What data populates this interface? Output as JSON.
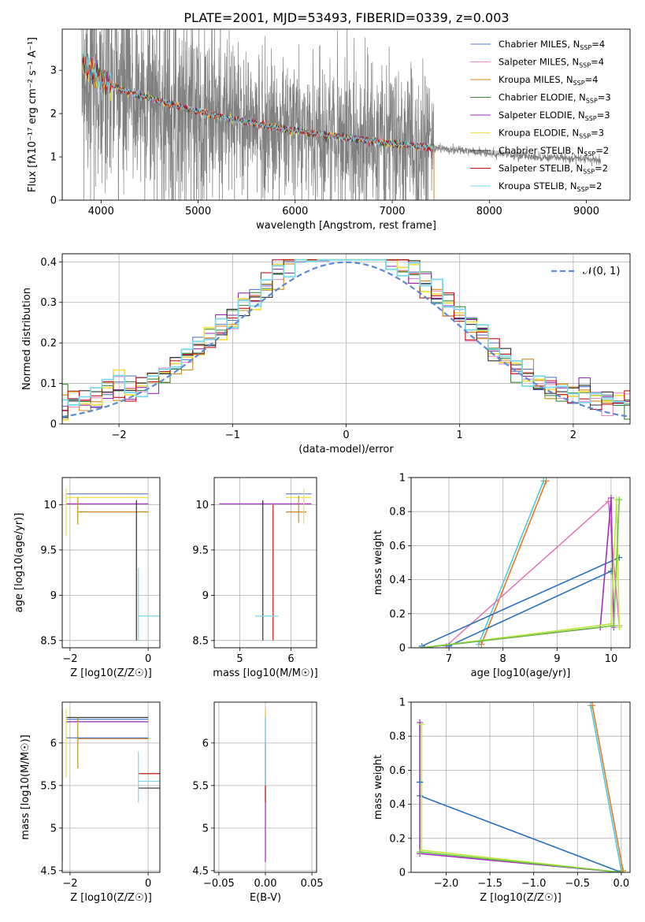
{
  "figure": {
    "title": "PLATE=2001, MJD=53493, FIBERID=0339, z=0.003"
  },
  "colors": {
    "spectrum": "#808080",
    "normal_curve": "#5b8bd6",
    "grid": "#b0b0b0",
    "models": [
      "#5b7fc7",
      "#e889c6",
      "#cc8a1f",
      "#3c8c3c",
      "#9a2ab8",
      "#f0e04a",
      "#303030",
      "#c01818",
      "#7ad8e8"
    ],
    "weights_extra": [
      "#e07b28",
      "#2a70c0",
      "#e27ab8",
      "#70c840",
      "#a030c0",
      "#c0e840",
      "#6a6a6a",
      "#d23030",
      "#50c8d8"
    ]
  },
  "legend": {
    "entries": [
      {
        "base": "Chabrier MILES, N",
        "sub": "SSP",
        "tail": "=4"
      },
      {
        "base": "Salpeter MILES, N",
        "sub": "SSP",
        "tail": "=4"
      },
      {
        "base": "Kroupa MILES, N",
        "sub": "SSP",
        "tail": "=4"
      },
      {
        "base": "Chabrier ELODIE, N",
        "sub": "SSP",
        "tail": "=3"
      },
      {
        "base": "Salpeter ELODIE, N",
        "sub": "SSP",
        "tail": "=3"
      },
      {
        "base": "Kroupa ELODIE, N",
        "sub": "SSP",
        "tail": "=3"
      },
      {
        "base": "Chabrier STELIB, N",
        "sub": "SSP",
        "tail": "=2"
      },
      {
        "base": "Salpeter STELIB, N",
        "sub": "SSP",
        "tail": "=2"
      },
      {
        "base": "Kroupa STELIB, N",
        "sub": "SSP",
        "tail": "=2"
      }
    ],
    "normal_label": "𝒩(0, 1)"
  },
  "chart_data": [
    {
      "id": "spectrum",
      "type": "line",
      "xlabel": "wavelength [Angstrom, rest frame]",
      "ylabel": "Flux [f_λ 10^-17 erg cm^-2 s^-1 A^-1]",
      "xlim": [
        3600,
        9450
      ],
      "ylim": [
        0,
        3.95
      ],
      "xticks": [
        4000,
        5000,
        6000,
        7000,
        8000,
        9000
      ],
      "yticks": [
        0,
        1,
        2,
        3
      ],
      "data_start": 3800,
      "data_end": 9150,
      "model_end": 7430,
      "continuum": [
        [
          3800,
          3.2
        ],
        [
          3900,
          3.0
        ],
        [
          4000,
          2.8
        ],
        [
          4200,
          2.55
        ],
        [
          4500,
          2.35
        ],
        [
          5000,
          2.05
        ],
        [
          5500,
          1.8
        ],
        [
          6000,
          1.6
        ],
        [
          6500,
          1.45
        ],
        [
          7000,
          1.3
        ],
        [
          7400,
          1.22
        ],
        [
          8000,
          1.08
        ],
        [
          8500,
          1.0
        ],
        [
          9000,
          0.95
        ],
        [
          9150,
          0.92
        ]
      ],
      "grid": false
    },
    {
      "id": "residuals",
      "type": "histogram",
      "xlabel": "(data-model)/error",
      "ylabel": "Normed distribution",
      "xlim": [
        -2.5,
        2.5
      ],
      "ylim": [
        0,
        0.42
      ],
      "xticks": [
        -2,
        -1,
        0,
        1,
        2
      ],
      "yticks": [
        0,
        0.1,
        0.2,
        0.3,
        0.4
      ],
      "bin_width": 0.1,
      "normal_reference": {
        "mean": 0,
        "sigma": 1
      },
      "grid": true
    },
    {
      "id": "age_vs_Z",
      "type": "scatter",
      "xlabel": "Z [log10(Z/Z☉)]",
      "ylabel": "age [log10(age/yr)]",
      "xlim": [
        -2.2,
        0.3
      ],
      "ylim": [
        8.42,
        10.3
      ],
      "xticks": [
        -2,
        0
      ],
      "yticks": [
        8.5,
        9.0,
        9.5,
        10.0
      ],
      "segments": [
        {
          "c": 0,
          "x": [
            -2.1,
            0
          ],
          "y": [
            10.12,
            10.12
          ]
        },
        {
          "c": 5,
          "x": [
            -2.1,
            0
          ],
          "y": [
            10.08,
            10.08
          ]
        },
        {
          "c": 4,
          "x": [
            -2.1,
            0
          ],
          "y": [
            10.01,
            10.01
          ]
        },
        {
          "c": 2,
          "x": [
            -1.8,
            0
          ],
          "y": [
            9.92,
            9.92
          ]
        },
        {
          "c": 6,
          "x": [
            -0.3,
            -0.3
          ],
          "y": [
            8.5,
            10.05
          ]
        },
        {
          "c": 8,
          "x": [
            -0.25,
            0.3
          ],
          "y": [
            8.77,
            8.77
          ]
        },
        {
          "c": 8,
          "x": [
            -0.25,
            -0.25
          ],
          "y": [
            8.5,
            9.3
          ]
        },
        {
          "c": 5,
          "x": [
            -2.1,
            -2.1
          ],
          "y": [
            9.65,
            10.18
          ]
        },
        {
          "c": 2,
          "x": [
            -1.8,
            -1.8
          ],
          "y": [
            9.78,
            10.08
          ]
        }
      ],
      "grid": true
    },
    {
      "id": "age_vs_mass",
      "type": "scatter",
      "xlabel": "mass [log10(M/M☉)]",
      "ylabel": "",
      "xlim": [
        4.5,
        6.5
      ],
      "ylim": [
        8.42,
        10.3
      ],
      "xticks": [
        5,
        6
      ],
      "yticks": [
        8.5,
        9.0,
        9.5,
        10.0
      ],
      "segments": [
        {
          "c": 4,
          "x": [
            4.6,
            6.4
          ],
          "y": [
            10.01,
            10.01
          ]
        },
        {
          "c": 0,
          "x": [
            5.9,
            6.4
          ],
          "y": [
            10.12,
            10.12
          ]
        },
        {
          "c": 5,
          "x": [
            5.9,
            6.4
          ],
          "y": [
            10.08,
            10.08
          ]
        },
        {
          "c": 2,
          "x": [
            5.9,
            6.3
          ],
          "y": [
            9.92,
            9.92
          ]
        },
        {
          "c": 6,
          "x": [
            5.45,
            5.45
          ],
          "y": [
            8.5,
            10.05
          ]
        },
        {
          "c": 7,
          "x": [
            5.65,
            5.65
          ],
          "y": [
            8.5,
            10.0
          ]
        },
        {
          "c": 8,
          "x": [
            5.3,
            5.75
          ],
          "y": [
            8.77,
            8.77
          ]
        },
        {
          "c": 5,
          "x": [
            6.25,
            6.25
          ],
          "y": [
            9.78,
            10.18
          ]
        },
        {
          "c": 2,
          "x": [
            6.15,
            6.15
          ],
          "y": [
            9.8,
            10.1
          ]
        }
      ],
      "grid": true
    },
    {
      "id": "weight_vs_age",
      "type": "line",
      "xlabel": "age [log10(age/yr)]",
      "ylabel": "mass weight",
      "xlim": [
        6.3,
        10.35
      ],
      "ylim": [
        0,
        1.0
      ],
      "xticks": [
        7,
        8,
        9,
        10
      ],
      "yticks": [
        0.0,
        0.2,
        0.4,
        0.6,
        0.8,
        1.0
      ],
      "series": [
        {
          "c": 8,
          "x": [
            7.55,
            8.75
          ],
          "y": [
            0.02,
            0.98
          ]
        },
        {
          "c": 0,
          "x": [
            7.6,
            8.8
          ],
          "y": [
            0.02,
            0.98
          ]
        },
        {
          "c": 2,
          "x": [
            6.95,
            9.95,
            10.15
          ],
          "y": [
            0.01,
            0.86,
            0.13
          ]
        },
        {
          "c": 1,
          "x": [
            6.5,
            10.15
          ],
          "y": [
            0.01,
            0.53
          ]
        },
        {
          "c": 1,
          "x": [
            7.0,
            10.0
          ],
          "y": [
            0.01,
            0.45
          ]
        },
        {
          "c": 4,
          "x": [
            6.5,
            9.8,
            10.0,
            10.05
          ],
          "y": [
            0.0,
            0.12,
            0.88,
            0.12
          ]
        },
        {
          "c": 5,
          "x": [
            6.5,
            10.0,
            10.1,
            10.15
          ],
          "y": [
            0.0,
            0.14,
            0.87,
            0.12
          ]
        },
        {
          "c": 3,
          "x": [
            6.5,
            10.05,
            10.15
          ],
          "y": [
            0.0,
            0.13,
            0.87
          ]
        }
      ],
      "grid": true
    },
    {
      "id": "mass_vs_Z",
      "type": "scatter",
      "xlabel": "Z [log10(Z/Z☉)]",
      "ylabel": "mass [log10(M/M☉)]",
      "xlim": [
        -2.2,
        0.3
      ],
      "ylim": [
        4.48,
        6.48
      ],
      "xticks": [
        -2,
        0
      ],
      "yticks": [
        4.5,
        5.0,
        5.5,
        6.0
      ],
      "segments": [
        {
          "c": 6,
          "x": [
            -2.1,
            0
          ],
          "y": [
            6.3,
            6.3
          ]
        },
        {
          "c": 0,
          "x": [
            -2.1,
            0
          ],
          "y": [
            6.28,
            6.28
          ]
        },
        {
          "c": 4,
          "x": [
            -2.1,
            0
          ],
          "y": [
            6.25,
            6.25
          ]
        },
        {
          "c": 2,
          "x": [
            -1.8,
            0
          ],
          "y": [
            6.05,
            6.05
          ]
        },
        {
          "c": 0,
          "x": [
            -2.1,
            0
          ],
          "y": [
            6.06,
            6.06
          ]
        },
        {
          "c": 7,
          "x": [
            -0.25,
            0.3
          ],
          "y": [
            5.64,
            5.64
          ]
        },
        {
          "c": 8,
          "x": [
            -0.25,
            0.3
          ],
          "y": [
            5.55,
            5.55
          ]
        },
        {
          "c": 6,
          "x": [
            -0.25,
            0.3
          ],
          "y": [
            5.47,
            5.47
          ]
        },
        {
          "c": 4,
          "x": [
            -2.2,
            -2.2
          ],
          "y": [
            4.6,
            6.4
          ]
        },
        {
          "c": 5,
          "x": [
            -2.1,
            -2.1
          ],
          "y": [
            5.6,
            6.4
          ]
        },
        {
          "c": 2,
          "x": [
            -1.8,
            -1.8
          ],
          "y": [
            5.7,
            6.3
          ]
        },
        {
          "c": 8,
          "x": [
            -0.25,
            -0.25
          ],
          "y": [
            5.3,
            5.9
          ]
        }
      ],
      "grid": true
    },
    {
      "id": "mass_vs_EBV",
      "type": "scatter",
      "xlabel": "E(B-V)",
      "ylabel": "",
      "xlim": [
        -0.055,
        0.055
      ],
      "ylim": [
        4.48,
        6.48
      ],
      "xticks": [
        -0.05,
        0.0,
        0.05
      ],
      "xtick_labels": [
        "−0.05",
        "0.00",
        "0.05"
      ],
      "yticks": [
        4.5,
        5.0,
        5.5,
        6.0
      ],
      "segments": [
        {
          "c": 4,
          "x": [
            0,
            0
          ],
          "y": [
            4.6,
            6.4
          ]
        },
        {
          "c": 5,
          "x": [
            0,
            0
          ],
          "y": [
            5.6,
            6.4
          ]
        },
        {
          "c": 7,
          "x": [
            0,
            0
          ],
          "y": [
            5.3,
            6.0
          ]
        },
        {
          "c": 8,
          "x": [
            0,
            0
          ],
          "y": [
            5.5,
            6.3
          ]
        }
      ],
      "grid": true
    },
    {
      "id": "weight_vs_Z",
      "type": "line",
      "xlabel": "Z [log10(Z/Z☉)]",
      "ylabel": "mass weight",
      "xlim": [
        -2.4,
        0.1
      ],
      "ylim": [
        0,
        1.0
      ],
      "xticks": [
        -2.0,
        -1.5,
        -1.0,
        -0.5,
        0.0
      ],
      "xtick_labels": [
        "−2.0",
        "−1.5",
        "−1.0",
        "−0.5",
        "0.0"
      ],
      "yticks": [
        0.0,
        0.2,
        0.4,
        0.6,
        0.8,
        1.0
      ],
      "series": [
        {
          "c": 8,
          "x": [
            -0.35,
            0.0
          ],
          "y": [
            0.98,
            0.01
          ]
        },
        {
          "c": 0,
          "x": [
            -0.33,
            0.02
          ],
          "y": [
            0.98,
            0.01
          ]
        },
        {
          "c": 1,
          "x": [
            -2.3,
            0.0
          ],
          "y": [
            0.45,
            0.0
          ]
        },
        {
          "c": 4,
          "x": [
            -2.3,
            -2.3,
            0.0
          ],
          "y": [
            0.88,
            0.11,
            0.0
          ]
        },
        {
          "c": 5,
          "x": [
            -2.28,
            -2.28,
            0.0
          ],
          "y": [
            0.87,
            0.13,
            0.0
          ]
        },
        {
          "c": 3,
          "x": [
            -2.3,
            0.0
          ],
          "y": [
            0.12,
            0.0
          ]
        },
        {
          "c": 1,
          "x": [
            -2.3,
            -2.3
          ],
          "y": [
            0.53,
            0.53
          ]
        }
      ],
      "grid": true
    }
  ]
}
